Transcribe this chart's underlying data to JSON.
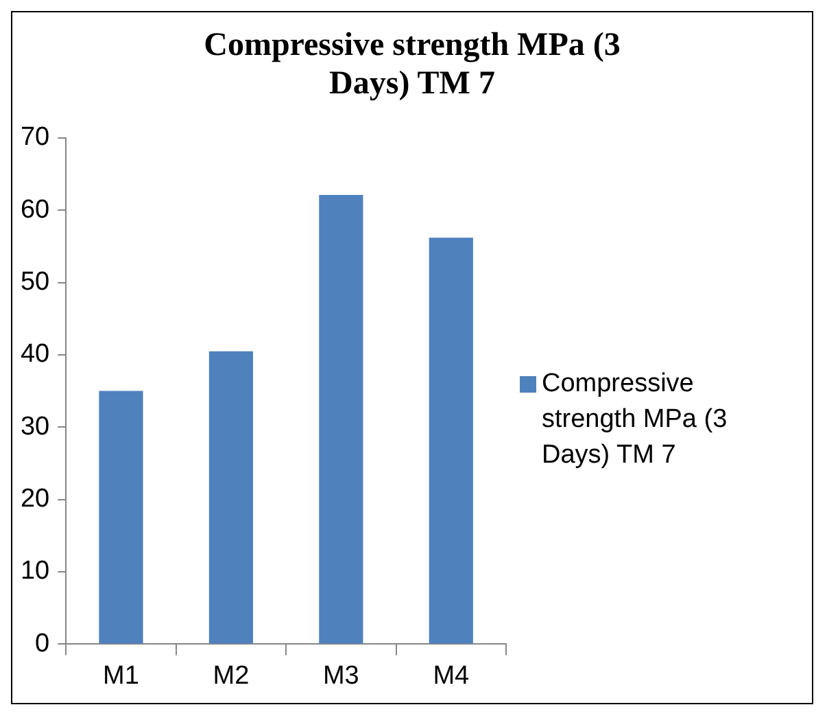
{
  "chart_data": {
    "type": "bar",
    "title": "Compressive strength MPa (3 Days) TM 7",
    "categories": [
      "M1",
      "M2",
      "M3",
      "M4"
    ],
    "series": [
      {
        "name": "Compressive strength MPa (3 Days) TM 7",
        "color": "#4f81bd",
        "values": [
          35,
          40.5,
          62.1,
          56.2
        ]
      }
    ],
    "ylim": [
      0,
      70
    ],
    "yticks": [
      0,
      10,
      20,
      30,
      40,
      50,
      60,
      70
    ],
    "grid": false,
    "legend": "right"
  }
}
